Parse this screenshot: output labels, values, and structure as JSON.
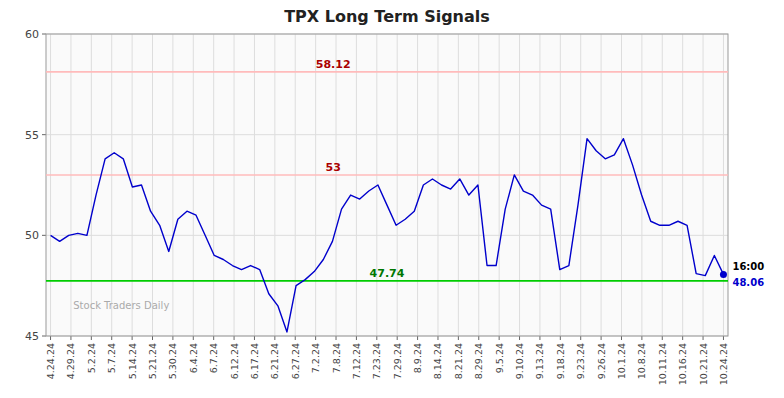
{
  "chart_data": {
    "type": "line",
    "title": "TPX Long Term Signals",
    "values": [
      50.0,
      49.7,
      50.0,
      50.1,
      50.0,
      52.0,
      53.8,
      54.1,
      53.8,
      52.4,
      52.5,
      51.2,
      50.5,
      49.2,
      50.8,
      51.2,
      51.0,
      50.0,
      49.0,
      48.8,
      48.5,
      48.3,
      48.5,
      48.3,
      47.1,
      46.5,
      45.2,
      47.5,
      47.8,
      48.2,
      48.8,
      49.7,
      51.3,
      52.0,
      51.8,
      52.2,
      52.5,
      51.5,
      50.5,
      50.8,
      51.2,
      52.5,
      52.8,
      52.5,
      52.3,
      52.8,
      52.0,
      52.5,
      48.5,
      48.5,
      51.3,
      53.0,
      52.2,
      52.0,
      51.5,
      51.3,
      48.3,
      48.5,
      51.5,
      54.8,
      54.2,
      53.8,
      54.0,
      54.8,
      53.5,
      52.0,
      50.7,
      50.5,
      50.5,
      50.7,
      50.5,
      48.1,
      48.0,
      49.0,
      48.06
    ],
    "color": "#0000cc",
    "xlim": [
      -0.5,
      74.5
    ],
    "xticks": [
      {
        "value": 0,
        "label": "4.24.24"
      },
      {
        "value": 2.2424,
        "label": "4.29.24"
      },
      {
        "value": 4.4848,
        "label": "5.2.24"
      },
      {
        "value": 6.7273,
        "label": "5.7.24"
      },
      {
        "value": 8.9697,
        "label": "5.14.24"
      },
      {
        "value": 11.2121,
        "label": "5.21.24"
      },
      {
        "value": 13.4545,
        "label": "5.30.24"
      },
      {
        "value": 15.697,
        "label": "6.4.24"
      },
      {
        "value": 17.9394,
        "label": "6.7.24"
      },
      {
        "value": 20.1818,
        "label": "6.12.24"
      },
      {
        "value": 22.4242,
        "label": "6.17.24"
      },
      {
        "value": 24.6667,
        "label": "6.21.24"
      },
      {
        "value": 26.9091,
        "label": "6.27.24"
      },
      {
        "value": 29.1515,
        "label": "7.2.24"
      },
      {
        "value": 31.3939,
        "label": "7.8.24"
      },
      {
        "value": 33.6364,
        "label": "7.12.24"
      },
      {
        "value": 35.8788,
        "label": "7.23.24"
      },
      {
        "value": 38.1212,
        "label": "7.29.24"
      },
      {
        "value": 40.3636,
        "label": "8.9.24"
      },
      {
        "value": 42.6061,
        "label": "8.14.24"
      },
      {
        "value": 44.8485,
        "label": "8.21.24"
      },
      {
        "value": 47.0909,
        "label": "8.29.24"
      },
      {
        "value": 49.3333,
        "label": "9.5.24"
      },
      {
        "value": 51.5758,
        "label": "9.10.24"
      },
      {
        "value": 53.8182,
        "label": "9.13.24"
      },
      {
        "value": 56.0606,
        "label": "9.18.24"
      },
      {
        "value": 58.303,
        "label": "9.23.24"
      },
      {
        "value": 60.5455,
        "label": "9.26.24"
      },
      {
        "value": 62.7879,
        "label": "10.1.24"
      },
      {
        "value": 65.0303,
        "label": "10.8.24"
      },
      {
        "value": 67.2727,
        "label": "10.11.24"
      },
      {
        "value": 69.5152,
        "label": "10.16.24"
      },
      {
        "value": 71.7576,
        "label": "10.21.24"
      },
      {
        "value": 74,
        "label": "10.24.24"
      }
    ],
    "ylim": [
      45,
      60
    ],
    "yticks": [
      45,
      50,
      55,
      60
    ],
    "grid": true,
    "hlines": [
      {
        "value": 58.12,
        "label": "58.12",
        "color": "#ffbbbb",
        "label_color": "#aa0000"
      },
      {
        "value": 53.0,
        "label": "53",
        "color": "#ffbbbb",
        "label_color": "#aa0000"
      },
      {
        "value": 47.74,
        "label": "47.74",
        "color": "#00cc00",
        "label_color": "#007700"
      }
    ],
    "annotations": [
      {
        "text": "16:00",
        "color": "#000000"
      },
      {
        "text": "48.06",
        "color": "#0000cc"
      }
    ],
    "watermark": "Stock Traders Daily"
  }
}
